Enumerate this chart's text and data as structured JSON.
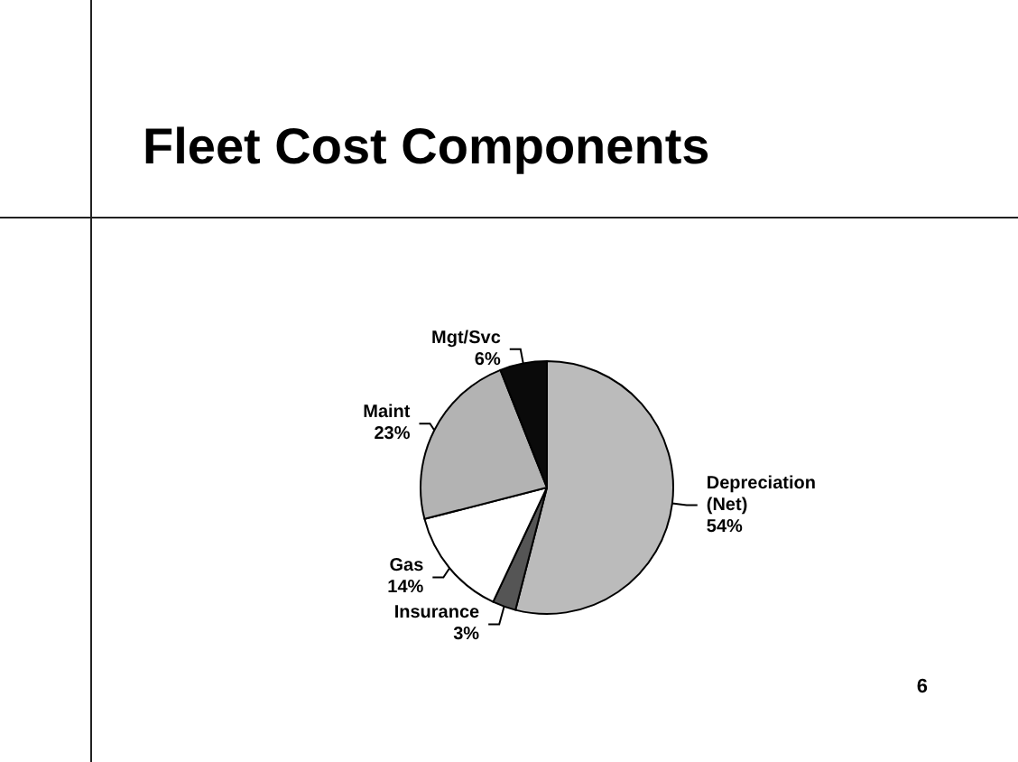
{
  "chart_data": {
    "type": "pie",
    "title": "Fleet Cost Components",
    "categories": [
      "Depreciation (Net)",
      "Insurance",
      "Gas",
      "Maint",
      "Mgt/Svc"
    ],
    "values": [
      54,
      3,
      14,
      23,
      6
    ],
    "colors": [
      "#bbbbbb",
      "#555555",
      "#ffffff",
      "#b3b3b3",
      "#0a0a0a"
    ],
    "value_labels": [
      "54%",
      "3%",
      "14%",
      "23%",
      "6%"
    ],
    "annotations": [
      "6"
    ]
  }
}
